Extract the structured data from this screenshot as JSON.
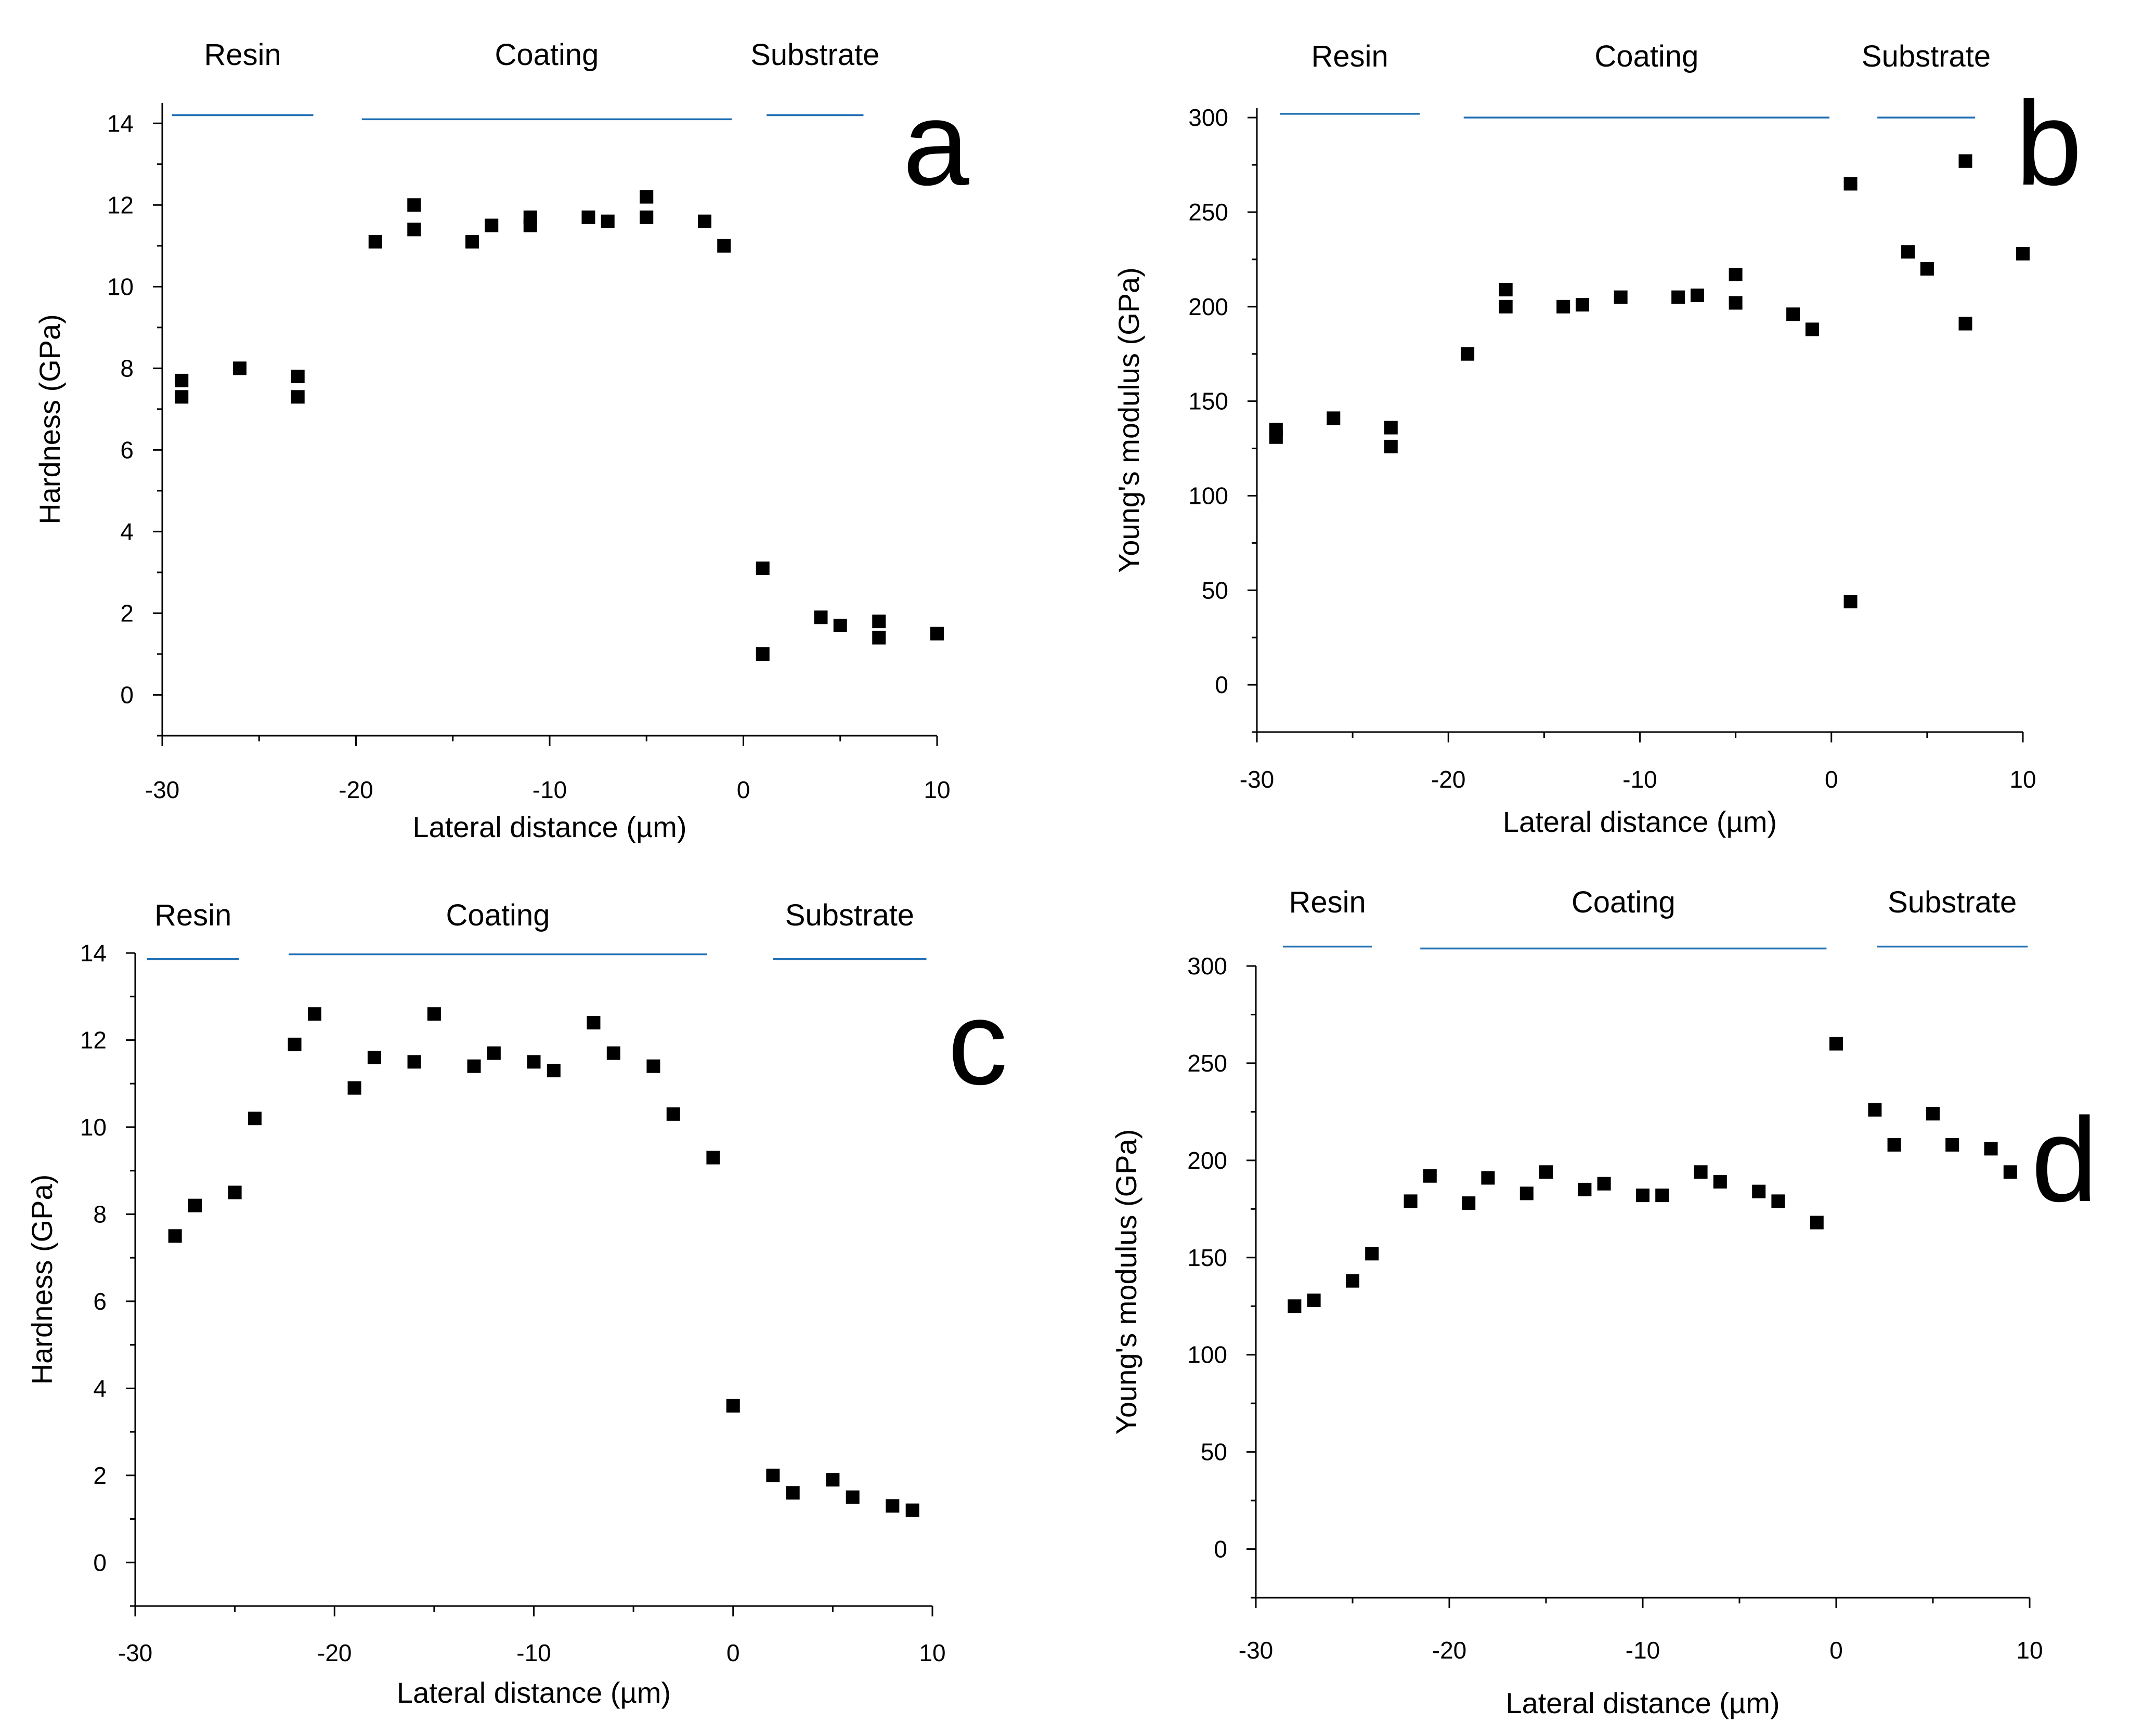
{
  "colors": {
    "marker": "#000000",
    "region_line": "#1f6fb4",
    "axis": "#000000"
  },
  "chart_data": [
    {
      "panel": "a",
      "type": "scatter",
      "title": "",
      "xlabel": "Lateral distance (µm)",
      "ylabel": "Hardness (GPa)",
      "xlim": [
        -30,
        10
      ],
      "ylim": [
        -1,
        14.5
      ],
      "xticks": [
        -30,
        -20,
        -10,
        0,
        10
      ],
      "xtick_labels": [
        "-30",
        "-20",
        "-10",
        "0",
        "10"
      ],
      "yticks": [
        0,
        2,
        4,
        6,
        8,
        10,
        12,
        14
      ],
      "ytick_labels": [
        "0",
        "2",
        "4",
        "6",
        "8",
        "10",
        "12",
        "14"
      ],
      "regions": [
        {
          "label": "Resin",
          "x_start": -29.5,
          "x_end": -22.2,
          "y_level": 14.2
        },
        {
          "label": "Coating",
          "x_start": -19.7,
          "x_end": -0.6,
          "y_level": 14.1
        },
        {
          "label": "Substrate",
          "x_start": 1.2,
          "x_end": 6.2,
          "y_level": 14.2
        }
      ],
      "series": [
        {
          "name": "Hardness",
          "x": [
            -29,
            -29,
            -26,
            -23,
            -23,
            -19,
            -17,
            -17,
            -14,
            -13,
            -11,
            -11,
            -8,
            -7,
            -5,
            -5,
            -2,
            -1,
            1,
            1,
            4,
            5,
            7,
            7,
            10
          ],
          "y": [
            7.7,
            7.3,
            8.0,
            7.8,
            7.3,
            11.1,
            12.0,
            11.4,
            11.1,
            11.5,
            11.7,
            11.5,
            11.7,
            11.6,
            12.2,
            11.7,
            11.6,
            11.0,
            3.1,
            1.0,
            1.9,
            1.7,
            1.8,
            1.4,
            1.5
          ]
        }
      ]
    },
    {
      "panel": "b",
      "type": "scatter",
      "title": "",
      "xlabel": "Lateral distance (µm)",
      "ylabel": "Young's modulus (GPa)",
      "xlim": [
        -30,
        10
      ],
      "ylim": [
        -25,
        305
      ],
      "xticks": [
        -30,
        -20,
        -10,
        0,
        10
      ],
      "xtick_labels": [
        "-30",
        "-20",
        "-10",
        "0",
        "10"
      ],
      "yticks": [
        0,
        50,
        100,
        150,
        200,
        250,
        300
      ],
      "ytick_labels": [
        "0",
        "50",
        "100",
        "150",
        "200",
        "250",
        "300"
      ],
      "regions": [
        {
          "label": "Resin",
          "x_start": -28.8,
          "x_end": -21.5,
          "y_level": 302
        },
        {
          "label": "Coating",
          "x_start": -19.2,
          "x_end": -0.1,
          "y_level": 300
        },
        {
          "label": "Substrate",
          "x_start": 2.4,
          "x_end": 7.5,
          "y_level": 300
        }
      ],
      "series": [
        {
          "name": "Young's modulus",
          "x": [
            -29,
            -29,
            -26,
            -23,
            -23,
            -19,
            -17,
            -17,
            -14,
            -13,
            -11,
            -8,
            -7,
            -5,
            -5,
            -2,
            -1,
            1,
            1,
            4,
            5,
            7,
            7,
            10
          ],
          "y": [
            135,
            131,
            141,
            136,
            126,
            175,
            209,
            200,
            200,
            201,
            205,
            205,
            206,
            217,
            202,
            196,
            188,
            265,
            44,
            229,
            220,
            277,
            191,
            228
          ]
        }
      ]
    },
    {
      "panel": "c",
      "type": "scatter",
      "title": "",
      "xlabel": "Lateral distance (µm)",
      "ylabel": "Hardness (GPa)",
      "xlim": [
        -30,
        10
      ],
      "ylim": [
        -1,
        14
      ],
      "xticks": [
        -30,
        -20,
        -10,
        0,
        10
      ],
      "xtick_labels": [
        "-30",
        "-20",
        "-10",
        "0",
        "10"
      ],
      "yticks": [
        0,
        2,
        4,
        6,
        8,
        10,
        12,
        14
      ],
      "ytick_labels": [
        "0",
        "2",
        "4",
        "6",
        "8",
        "10",
        "12",
        "14"
      ],
      "regions": [
        {
          "label": "Resin",
          "x_start": -29.4,
          "x_end": -24.8,
          "y_level": 13.86
        },
        {
          "label": "Coating",
          "x_start": -22.3,
          "x_end": -1.3,
          "y_level": 13.97
        },
        {
          "label": "Substrate",
          "x_start": 2.0,
          "x_end": 9.7,
          "y_level": 13.86
        }
      ],
      "series": [
        {
          "name": "Hardness",
          "x": [
            -28,
            -27,
            -25,
            -24,
            -22,
            -21,
            -19,
            -18,
            -16,
            -15,
            -13,
            -12,
            -10,
            -9,
            -7,
            -6,
            -4,
            -3,
            -1,
            0,
            2,
            3,
            5,
            6,
            8,
            9
          ],
          "y": [
            7.5,
            8.2,
            8.5,
            10.2,
            11.9,
            12.6,
            10.9,
            11.6,
            11.5,
            12.6,
            11.4,
            11.7,
            11.5,
            11.3,
            12.4,
            11.7,
            11.4,
            10.3,
            9.3,
            3.6,
            2.0,
            1.6,
            1.9,
            1.5,
            1.3,
            1.2
          ]
        }
      ]
    },
    {
      "panel": "d",
      "type": "scatter",
      "title": "",
      "xlabel": "Lateral distance (µm)",
      "ylabel": "Young's modulus (GPa)",
      "xlim": [
        -30,
        10
      ],
      "ylim": [
        -25,
        300
      ],
      "xticks": [
        -30,
        -20,
        -10,
        0,
        10
      ],
      "xtick_labels": [
        "-30",
        "-20",
        "-10",
        "0",
        "10"
      ],
      "yticks": [
        0,
        50,
        100,
        150,
        200,
        250,
        300
      ],
      "ytick_labels": [
        "0",
        "50",
        "100",
        "150",
        "200",
        "250",
        "300"
      ],
      "regions": [
        {
          "label": "Resin",
          "x_start": -28.6,
          "x_end": -24.0,
          "y_level": 310
        },
        {
          "label": "Coating",
          "x_start": -21.5,
          "x_end": -0.5,
          "y_level": 309
        },
        {
          "label": "Substrate",
          "x_start": 2.1,
          "x_end": 9.9,
          "y_level": 310
        }
      ],
      "series": [
        {
          "name": "Young's modulus",
          "x": [
            -28,
            -27,
            -25,
            -24,
            -22,
            -21,
            -19,
            -18,
            -16,
            -15,
            -13,
            -12,
            -10,
            -9,
            -7,
            -6,
            -4,
            -3,
            -1,
            0,
            2,
            3,
            5,
            6,
            8,
            9
          ],
          "y": [
            125,
            128,
            138,
            152,
            179,
            192,
            178,
            191,
            183,
            194,
            185,
            188,
            182,
            182,
            194,
            189,
            184,
            179,
            168,
            260,
            226,
            208,
            224,
            208,
            206,
            194
          ]
        }
      ]
    }
  ]
}
